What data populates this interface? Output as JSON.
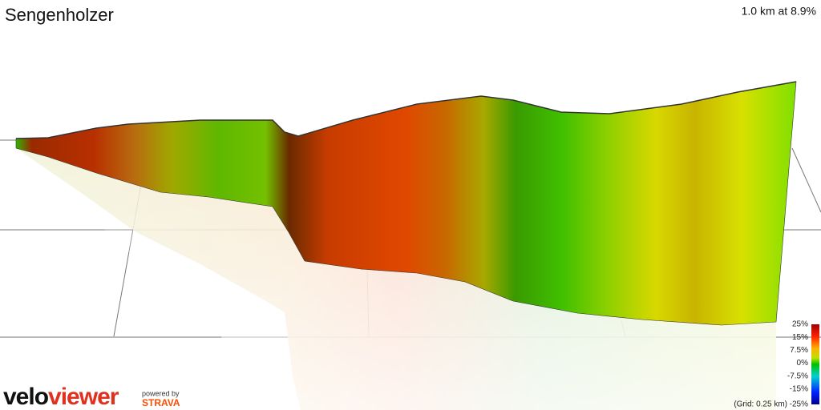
{
  "header": {
    "title": "Sengenholzer",
    "summary": "1.0 km at 8.9%"
  },
  "legend": {
    "labels": [
      "25%",
      "15%",
      "7.5%",
      "0%",
      "-7.5%",
      "-15%",
      "-25%"
    ],
    "grid_note": "(Grid: 0.25 km)"
  },
  "branding": {
    "logo_first": "velo",
    "logo_second": "viewer",
    "powered_by": "powered by",
    "partner": "STRAVA"
  }
}
